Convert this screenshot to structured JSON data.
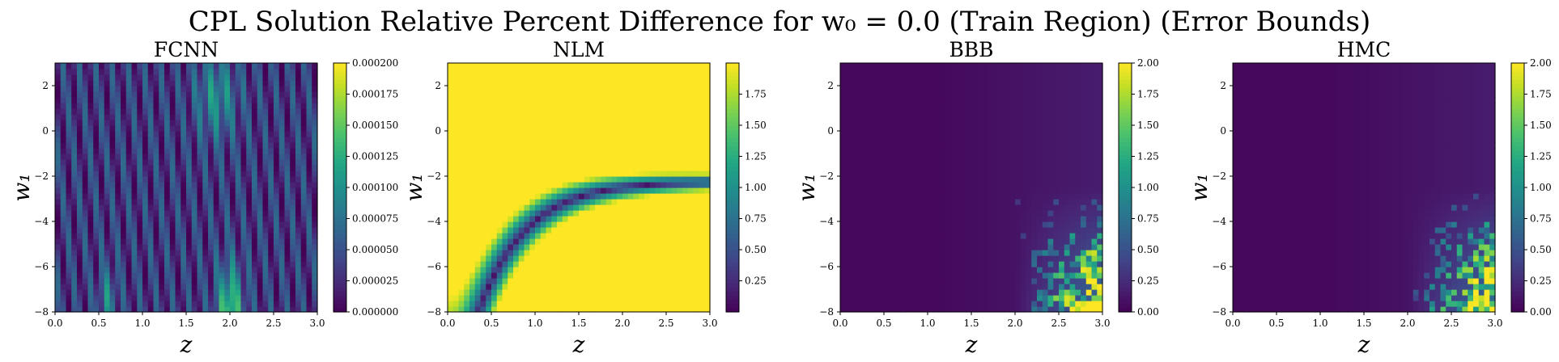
{
  "figure": {
    "title": "CPL Solution Relative Percent Difference for w₀ = 0.0 (Train Region) (Error Bounds)"
  },
  "chart_data": [
    {
      "type": "heatmap",
      "title": "FCNN",
      "xlabel": "z",
      "ylabel": "w₁",
      "xlim": [
        0.0,
        3.0
      ],
      "ylim": [
        -8,
        3
      ],
      "x_ticks": [
        "0.0",
        "0.5",
        "1.0",
        "1.5",
        "2.0",
        "2.5",
        "3.0"
      ],
      "y_ticks": [
        "2",
        "0",
        "−2",
        "−4",
        "−6",
        "−8"
      ],
      "colorbar": {
        "vmin": 0.0,
        "vmax": 0.0002,
        "ticks": [
          "0.000000",
          "0.000025",
          "0.000050",
          "0.000075",
          "0.000100",
          "0.000125",
          "0.000150",
          "0.000175",
          "0.000200"
        ],
        "tick_values": [
          0,
          2.5e-05,
          5e-05,
          7.5e-05,
          0.0001,
          0.000125,
          0.00015,
          0.000175,
          0.0002
        ]
      },
      "colormap": "viridis",
      "pattern": "fcnn"
    },
    {
      "type": "heatmap",
      "title": "NLM",
      "xlabel": "z",
      "ylabel": "w₁",
      "xlim": [
        0.0,
        3.0
      ],
      "ylim": [
        -8,
        3
      ],
      "x_ticks": [
        "0.0",
        "0.5",
        "1.0",
        "1.5",
        "2.0",
        "2.5",
        "3.0"
      ],
      "y_ticks": [
        "2",
        "0",
        "−2",
        "−4",
        "−6",
        "−8"
      ],
      "colorbar": {
        "vmin": 0.0,
        "vmax": 2.0,
        "ticks": [
          "0.25",
          "0.50",
          "0.75",
          "1.00",
          "1.25",
          "1.50",
          "1.75"
        ],
        "tick_values": [
          0.25,
          0.5,
          0.75,
          1.0,
          1.25,
          1.5,
          1.75
        ]
      },
      "colormap": "viridis",
      "pattern": "nlm"
    },
    {
      "type": "heatmap",
      "title": "BBB",
      "xlabel": "z",
      "ylabel": "w₁",
      "xlim": [
        0.0,
        3.0
      ],
      "ylim": [
        -8,
        3
      ],
      "x_ticks": [
        "0.0",
        "0.5",
        "1.0",
        "1.5",
        "2.0",
        "2.5",
        "3.0"
      ],
      "y_ticks": [
        "2",
        "0",
        "−2",
        "−4",
        "−6",
        "−8"
      ],
      "colorbar": {
        "vmin": 0.0,
        "vmax": 2.0,
        "ticks": [
          "0.00",
          "0.25",
          "0.50",
          "0.75",
          "1.00",
          "1.25",
          "1.50",
          "1.75",
          "2.00"
        ],
        "tick_values": [
          0,
          0.25,
          0.5,
          0.75,
          1.0,
          1.25,
          1.5,
          1.75,
          2.0
        ]
      },
      "colormap": "viridis",
      "pattern": "bbb"
    },
    {
      "type": "heatmap",
      "title": "HMC",
      "xlabel": "z",
      "ylabel": "w₁",
      "xlim": [
        0.0,
        3.0
      ],
      "ylim": [
        -8,
        3
      ],
      "x_ticks": [
        "0.0",
        "0.5",
        "1.0",
        "1.5",
        "2.0",
        "2.5",
        "3.0"
      ],
      "y_ticks": [
        "2",
        "0",
        "−2",
        "−4",
        "−6",
        "−8"
      ],
      "colorbar": {
        "vmin": 0.0,
        "vmax": 2.0,
        "ticks": [
          "0.00",
          "0.25",
          "0.50",
          "0.75",
          "1.00",
          "1.25",
          "1.50",
          "1.75",
          "2.00"
        ],
        "tick_values": [
          0,
          0.25,
          0.5,
          0.75,
          1.0,
          1.25,
          1.5,
          1.75,
          2.0
        ]
      },
      "colormap": "viridis",
      "pattern": "hmc"
    }
  ]
}
